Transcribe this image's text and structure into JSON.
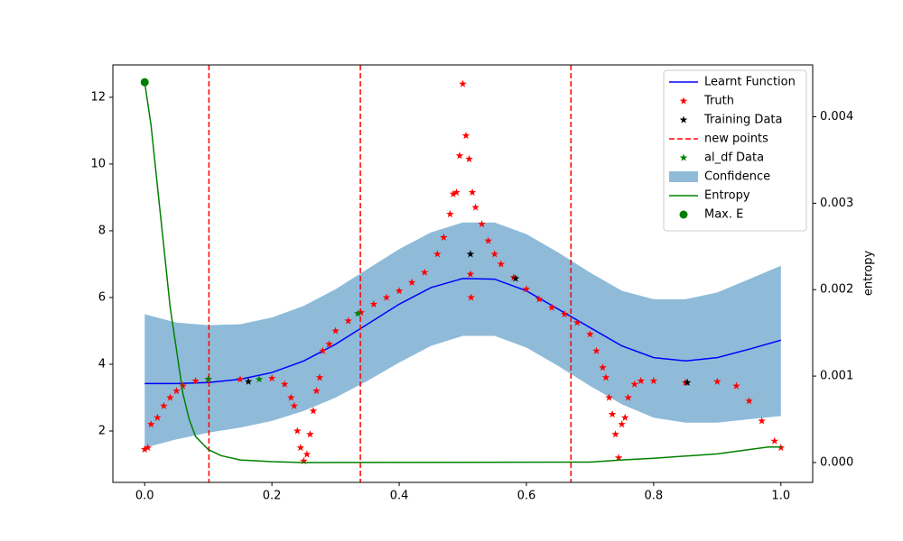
{
  "chart_data": {
    "type": "line",
    "xlim": [
      -0.05,
      1.05
    ],
    "ylim": [
      0.46,
      12.97
    ],
    "y2lim": [
      -0.00023,
      0.0046
    ],
    "xticks": [
      {
        "value": 0,
        "label": "0.0"
      },
      0.2,
      0.4,
      0.6,
      0.8,
      {
        "value": 1,
        "label": "1.0"
      }
    ],
    "yticks": [
      2,
      4,
      6,
      8,
      10,
      12
    ],
    "y2ticks": [
      {
        "value": 0,
        "label": "0.000"
      },
      {
        "value": 0.001,
        "label": "0.001"
      },
      {
        "value": 0.002,
        "label": "0.002"
      },
      {
        "value": 0.003,
        "label": "0.003"
      },
      {
        "value": 0.004,
        "label": "0.004"
      }
    ],
    "y2label": "entropy",
    "legend": "upper right",
    "series": [
      {
        "name": "Learnt Function",
        "kind": "line",
        "color": "#0000ff",
        "x": [
          0,
          0.05,
          0.1,
          0.15,
          0.2,
          0.25,
          0.3,
          0.35,
          0.4,
          0.45,
          0.5,
          0.55,
          0.6,
          0.65,
          0.7,
          0.75,
          0.8,
          0.85,
          0.9,
          0.95,
          1
        ],
        "values": [
          3.42,
          3.42,
          3.45,
          3.55,
          3.75,
          4.1,
          4.6,
          5.2,
          5.8,
          6.3,
          6.57,
          6.55,
          6.2,
          5.65,
          5.1,
          4.55,
          4.2,
          4.1,
          4.2,
          4.45,
          4.72
        ]
      },
      {
        "name": "Truth",
        "kind": "scatter",
        "marker": "star",
        "color": "#ff0000",
        "x": [
          0,
          0.005,
          0.01,
          0.02,
          0.03,
          0.04,
          0.05,
          0.06,
          0.08,
          0.1,
          0.15,
          0.2,
          0.22,
          0.23,
          0.235,
          0.24,
          0.245,
          0.25,
          0.255,
          0.26,
          0.265,
          0.27,
          0.275,
          0.28,
          0.29,
          0.3,
          0.32,
          0.34,
          0.36,
          0.38,
          0.4,
          0.42,
          0.44,
          0.46,
          0.47,
          0.48,
          0.485,
          0.49,
          0.495,
          0.5,
          0.505,
          0.51,
          0.512,
          0.513,
          0.515,
          0.52,
          0.53,
          0.54,
          0.55,
          0.56,
          0.58,
          0.6,
          0.62,
          0.64,
          0.66,
          0.68,
          0.7,
          0.71,
          0.72,
          0.725,
          0.73,
          0.735,
          0.74,
          0.745,
          0.75,
          0.755,
          0.76,
          0.77,
          0.78,
          0.8,
          0.85,
          0.9,
          0.93,
          0.95,
          0.97,
          0.99,
          1
        ],
        "values": [
          1.45,
          1.5,
          2.2,
          2.4,
          2.75,
          3.0,
          3.2,
          3.35,
          3.5,
          3.55,
          3.55,
          3.58,
          3.4,
          3.0,
          2.75,
          2.0,
          1.5,
          1.1,
          1.3,
          1.9,
          2.6,
          3.2,
          3.6,
          4.4,
          4.6,
          5.0,
          5.3,
          5.55,
          5.8,
          6.0,
          6.2,
          6.45,
          6.75,
          7.3,
          7.8,
          8.5,
          9.1,
          9.15,
          10.25,
          12.4,
          10.85,
          10.15,
          6.7,
          6.0,
          9.15,
          8.7,
          8.2,
          7.7,
          7.3,
          7.0,
          6.6,
          6.25,
          5.95,
          5.7,
          5.5,
          5.25,
          4.9,
          4.4,
          3.9,
          3.6,
          3.0,
          2.5,
          1.9,
          1.2,
          2.2,
          2.4,
          3.0,
          3.4,
          3.5,
          3.5,
          3.45,
          3.48,
          3.35,
          2.9,
          2.3,
          1.7,
          1.5
        ]
      },
      {
        "name": "Training Data",
        "kind": "scatter",
        "marker": "star",
        "color": "#000000",
        "x": [
          0.163,
          0.512,
          0.583,
          0.853
        ],
        "values": [
          3.48,
          7.3,
          6.57,
          3.45
        ]
      },
      {
        "name": "new points",
        "kind": "vline",
        "color": "#ff0000",
        "dash": true,
        "x": [
          0.101,
          0.339,
          0.67
        ]
      },
      {
        "name": "al_df Data",
        "kind": "scatter",
        "marker": "star",
        "color": "#008000",
        "x": [
          0.1,
          0.18,
          0.335
        ],
        "values": [
          3.55,
          3.55,
          5.52
        ]
      },
      {
        "name": "Confidence",
        "kind": "band",
        "color": "#8fbbd9",
        "x": [
          0,
          0.05,
          0.1,
          0.15,
          0.2,
          0.25,
          0.3,
          0.35,
          0.4,
          0.45,
          0.5,
          0.55,
          0.6,
          0.65,
          0.7,
          0.75,
          0.8,
          0.85,
          0.9,
          0.95,
          1
        ],
        "lower": [
          1.5,
          1.75,
          1.95,
          2.1,
          2.3,
          2.6,
          3.0,
          3.5,
          4.05,
          4.55,
          4.85,
          4.85,
          4.5,
          3.95,
          3.35,
          2.8,
          2.4,
          2.25,
          2.25,
          2.35,
          2.45
        ],
        "upper": [
          5.5,
          5.25,
          5.17,
          5.2,
          5.4,
          5.75,
          6.25,
          6.85,
          7.45,
          7.95,
          8.25,
          8.25,
          7.9,
          7.35,
          6.75,
          6.2,
          5.95,
          5.95,
          6.15,
          6.55,
          6.95
        ]
      },
      {
        "name": "Entropy",
        "kind": "line",
        "color": "#008000",
        "axis": "y2",
        "x": [
          0,
          0.01,
          0.02,
          0.03,
          0.04,
          0.05,
          0.06,
          0.07,
          0.08,
          0.1,
          0.12,
          0.15,
          0.2,
          0.25,
          0.7,
          0.75,
          0.8,
          0.9,
          0.95,
          0.98,
          1
        ],
        "values": [
          0.0044,
          0.0039,
          0.0032,
          0.0025,
          0.0018,
          0.0013,
          0.0008,
          0.0005,
          0.0003,
          0.00015,
          8e-05,
          3e-05,
          1e-05,
          0,
          5e-06,
          3e-05,
          5e-05,
          0.0001,
          0.00015,
          0.00018,
          0.00018
        ]
      },
      {
        "name": "Max. E",
        "kind": "scatter",
        "marker": "circle",
        "color": "#008000",
        "axis": "y2",
        "x": [
          0
        ],
        "values": [
          0.0044
        ]
      }
    ]
  }
}
